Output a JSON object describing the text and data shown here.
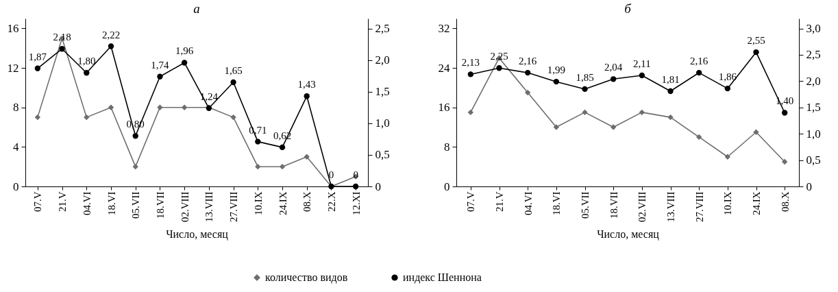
{
  "chart_data": [
    {
      "type": "line",
      "title": "а",
      "xlabel": "Число, месяц",
      "categories": [
        "07.V",
        "21.V",
        "04.VI",
        "18.VI",
        "05.VII",
        "18.VII",
        "02.VIII",
        "13.VIII",
        "27.VIII",
        "10.IX",
        "24.IX",
        "08.X",
        "22.X",
        "12.XI"
      ],
      "series": [
        {
          "name": "количество видов",
          "color": "#6e6e6e",
          "marker": "diamond",
          "values": [
            7,
            15,
            7,
            8,
            2,
            8,
            8,
            8,
            7,
            2,
            2,
            3,
            0,
            1
          ]
        },
        {
          "name": "индекс Шеннона",
          "color": "#000000",
          "marker": "circle",
          "axis": "y2",
          "values": [
            1.87,
            2.18,
            1.8,
            2.22,
            0.8,
            1.74,
            1.96,
            1.24,
            1.65,
            0.71,
            0.62,
            1.43,
            0,
            0
          ],
          "value_labels": [
            "1,87",
            "2,18",
            "1,80",
            "2,22",
            "0,80",
            "1,74",
            "1,96",
            "1,24",
            "1,65",
            "0,71",
            "0,62",
            "1,43",
            "0",
            "0"
          ]
        }
      ],
      "ylim": [
        0,
        17
      ],
      "yticks": [
        0,
        4,
        8,
        12,
        16
      ],
      "y2lim": [
        0,
        2.66
      ],
      "y2ticks": [
        {
          "value": 0,
          "label": "0"
        },
        {
          "value": 0.5,
          "label": "0,5"
        },
        {
          "value": 1,
          "label": "1,0"
        },
        {
          "value": 1.5,
          "label": "1,5"
        },
        {
          "value": 2,
          "label": "2,0"
        },
        {
          "value": 2.5,
          "label": "2,5"
        }
      ],
      "grid": false,
      "legend": "bottom"
    },
    {
      "type": "line",
      "title": "б",
      "xlabel": "Число, месяц",
      "categories": [
        "07.V",
        "21.V",
        "04.VI",
        "18.VI",
        "05.VII",
        "18.VII",
        "02.VIII",
        "13.VIII",
        "27.VIII",
        "10.IX",
        "24.IX",
        "08.X"
      ],
      "series": [
        {
          "name": "количество видов",
          "color": "#6e6e6e",
          "marker": "diamond",
          "values": [
            15,
            26,
            19,
            12,
            15,
            12,
            15,
            14,
            10,
            6,
            11,
            5
          ]
        },
        {
          "name": "индекс Шеннона",
          "color": "#000000",
          "marker": "circle",
          "axis": "y2",
          "values": [
            2.13,
            2.25,
            2.16,
            1.99,
            1.85,
            2.04,
            2.11,
            1.81,
            2.16,
            1.86,
            2.55,
            1.4
          ],
          "value_labels": [
            "2,13",
            "2,25",
            "2,16",
            "1,99",
            "1,85",
            "2,04",
            "2,11",
            "1,81",
            "2,16",
            "1,86",
            "2,55",
            "1,40"
          ]
        }
      ],
      "ylim": [
        0,
        34
      ],
      "yticks": [
        0,
        8,
        16,
        24,
        32
      ],
      "y2lim": [
        0,
        3.19
      ],
      "y2ticks": [
        {
          "value": 0,
          "label": "0"
        },
        {
          "value": 0.5,
          "label": "0,5"
        },
        {
          "value": 1,
          "label": "1,0"
        },
        {
          "value": 1.5,
          "label": "1,5"
        },
        {
          "value": 2,
          "label": "2,0"
        },
        {
          "value": 2.5,
          "label": "2,5"
        },
        {
          "value": 3,
          "label": "3,0"
        }
      ],
      "grid": false,
      "legend": "bottom"
    }
  ]
}
